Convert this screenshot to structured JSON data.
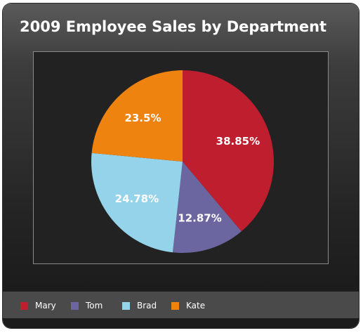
{
  "chart_data": {
    "type": "pie",
    "title": "2009 Employee Sales by Department",
    "categories": [
      "Mary",
      "Tom",
      "Brad",
      "Kate"
    ],
    "values": [
      38.85,
      12.87,
      24.78,
      23.5
    ],
    "labels": [
      "38.85%",
      "12.87%",
      "24.78%",
      "23.5%"
    ],
    "colors": [
      "#be1e2d",
      "#6b66a0",
      "#94d3ea",
      "#ef8310"
    ],
    "start_angle": "12 o'clock",
    "direction": "clockwise",
    "legend_position": "bottom"
  }
}
